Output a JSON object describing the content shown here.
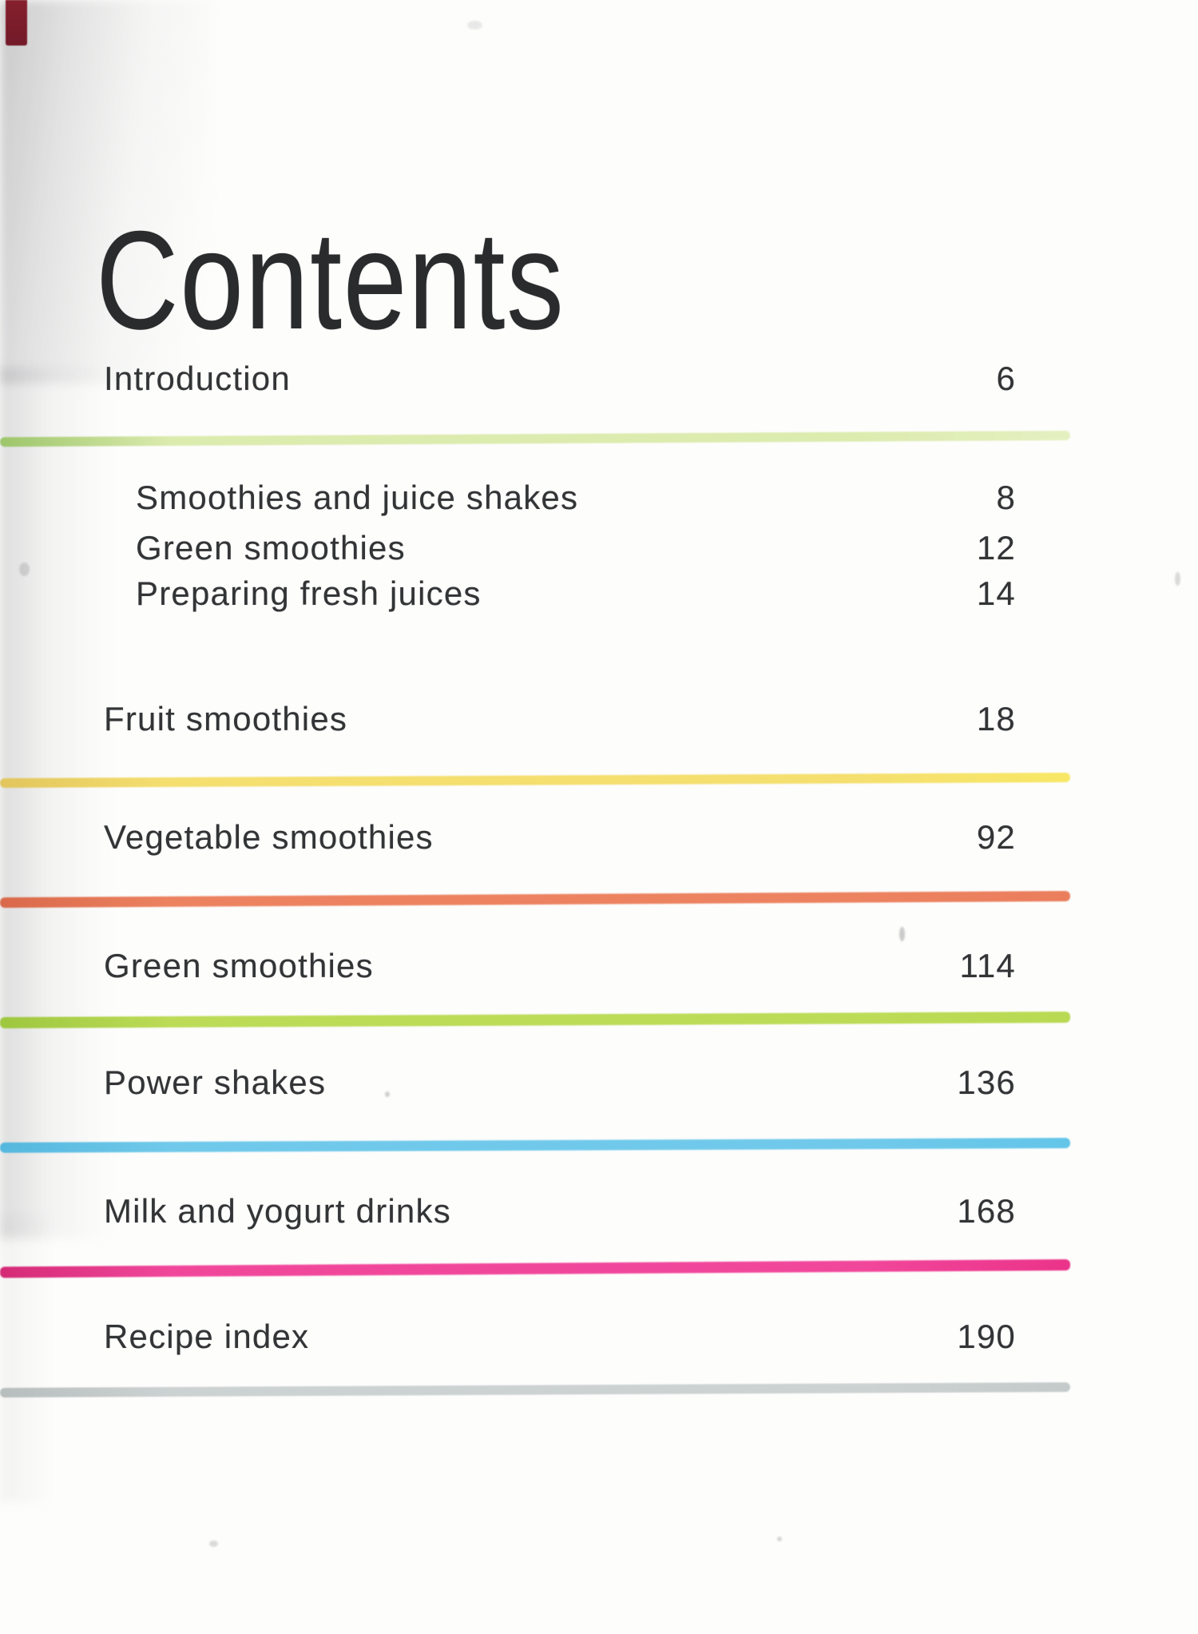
{
  "document": {
    "title": "Contents",
    "entries": [
      {
        "label": "Introduction",
        "page": "6",
        "indent": false
      },
      {
        "label": "Smoothies and juice shakes",
        "page": "8",
        "indent": true
      },
      {
        "label": "Green smoothies",
        "page": "12",
        "indent": true
      },
      {
        "label": "Preparing fresh juices",
        "page": "14",
        "indent": true
      },
      {
        "label": "Fruit smoothies",
        "page": "18",
        "indent": false
      },
      {
        "label": "Vegetable smoothies",
        "page": "92",
        "indent": false
      },
      {
        "label": "Green smoothies",
        "page": "114",
        "indent": false
      },
      {
        "label": "Power shakes",
        "page": "136",
        "indent": false
      },
      {
        "label": "Milk and yogurt drinks",
        "page": "168",
        "indent": false
      },
      {
        "label": "Recipe index",
        "page": "190",
        "indent": false
      }
    ],
    "dividers": [
      {
        "section": "introduction",
        "edge_color": "#9cc56a",
        "color": "#dcebae",
        "highlight_color": "#e4f0c0"
      },
      {
        "section": "fruit-smoothies",
        "edge_color": "#e2c55c",
        "color": "#f4df6f",
        "highlight_color": "#f8e765"
      },
      {
        "section": "vegetable-smoothies",
        "edge_color": "#d9684a",
        "color": "#ec8260",
        "highlight_color": "#ea7d5c"
      },
      {
        "section": "green-smoothies",
        "edge_color": "#9dc73e",
        "color": "#bcdb57",
        "highlight_color": "#b8d952"
      },
      {
        "section": "power-shakes",
        "edge_color": "#54b7dd",
        "color": "#70c9ea",
        "highlight_color": "#63c5e8"
      },
      {
        "section": "milk-and-yogurt",
        "edge_color": "#d42a76",
        "color": "#f1479b",
        "highlight_color": "#ea3389"
      },
      {
        "section": "recipe-index",
        "edge_color": "#b7bdbd",
        "color": "#ccd1d1",
        "highlight_color": "#c4caca"
      }
    ],
    "corner_mark_color": "#85202e"
  }
}
